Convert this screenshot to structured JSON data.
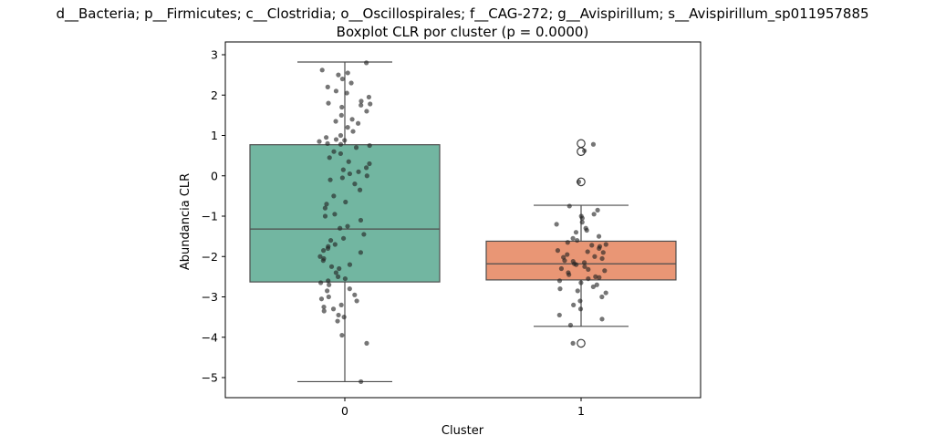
{
  "title_line1": "d__Bacteria; p__Firmicutes; c__Clostridia; o__Oscillospirales; f__CAG-272; g__Avispirillum; s__Avispirillum_sp011957885",
  "title_line2": "Boxplot CLR por cluster (p = 0.0000)",
  "chart_data": {
    "type": "box",
    "title": "d__Bacteria; p__Firmicutes; c__Clostridia; o__Oscillospirales; f__CAG-272; g__Avispirillum; s__Avispirillum_sp011957885\nBoxplot CLR por cluster (p = 0.0000)",
    "xlabel": "Cluster",
    "ylabel": "Abundancia CLR",
    "ylim": [
      -5.5,
      3.2
    ],
    "yticks": [
      3,
      2,
      1,
      0,
      -1,
      -2,
      -3,
      -4,
      -5
    ],
    "ytick_labels": [
      "3",
      "2",
      "1",
      "0",
      "−1",
      "−2",
      "−3",
      "−4",
      "−5"
    ],
    "categories": [
      "0",
      "1"
    ],
    "grid": false,
    "colors": {
      "box0": "#72b6a1",
      "box1": "#e99675",
      "line": "#4d4d4d",
      "points": "#222222"
    },
    "boxes": [
      {
        "category": "0",
        "whisker_low": -5.1,
        "q1": -2.63,
        "median": -1.32,
        "q3": 0.77,
        "whisker_high": 2.82,
        "outliers": [],
        "points": [
          2.8,
          2.62,
          2.55,
          2.5,
          2.4,
          2.3,
          2.2,
          2.1,
          2.05,
          1.95,
          1.85,
          1.8,
          1.78,
          1.75,
          1.7,
          1.6,
          1.5,
          1.4,
          1.35,
          1.3,
          1.2,
          1.1,
          1.0,
          0.95,
          0.9,
          0.88,
          0.85,
          0.8,
          0.78,
          0.75,
          0.7,
          0.6,
          0.55,
          0.45,
          0.35,
          0.3,
          0.2,
          0.15,
          0.1,
          0.05,
          0.0,
          -0.05,
          -0.1,
          -0.2,
          -0.35,
          -0.5,
          -0.65,
          -0.7,
          -0.8,
          -0.95,
          -1.0,
          -1.1,
          -1.25,
          -1.3,
          -1.45,
          -1.55,
          -1.6,
          -1.7,
          -1.75,
          -1.8,
          -1.85,
          -1.9,
          -2.0,
          -2.05,
          -2.1,
          -2.2,
          -2.25,
          -2.3,
          -2.4,
          -2.5,
          -2.55,
          -2.6,
          -2.65,
          -2.7,
          -2.8,
          -2.85,
          -2.95,
          -3.0,
          -3.05,
          -3.1,
          -3.2,
          -3.25,
          -3.3,
          -3.35,
          -3.45,
          -3.5,
          -3.6,
          -3.95,
          -4.15,
          -5.1
        ]
      },
      {
        "category": "1",
        "whisker_low": -3.73,
        "q1": -2.58,
        "median": -2.18,
        "q3": -1.62,
        "whisker_high": -0.73,
        "outliers": [
          0.8,
          0.6,
          -0.15,
          -4.15
        ],
        "points": [
          0.78,
          0.62,
          -0.15,
          -0.75,
          -0.85,
          -0.95,
          -1.0,
          -1.05,
          -1.15,
          -1.2,
          -1.3,
          -1.35,
          -1.4,
          -1.5,
          -1.55,
          -1.6,
          -1.65,
          -1.7,
          -1.72,
          -1.75,
          -1.8,
          -1.85,
          -1.88,
          -1.9,
          -1.95,
          -2.0,
          -2.02,
          -2.05,
          -2.1,
          -2.12,
          -2.15,
          -2.18,
          -2.2,
          -2.25,
          -2.3,
          -2.32,
          -2.35,
          -2.4,
          -2.45,
          -2.5,
          -2.52,
          -2.55,
          -2.6,
          -2.65,
          -2.7,
          -2.75,
          -2.8,
          -2.85,
          -2.9,
          -3.0,
          -3.1,
          -3.2,
          -3.3,
          -3.45,
          -3.55,
          -3.7,
          -4.15
        ]
      }
    ]
  }
}
